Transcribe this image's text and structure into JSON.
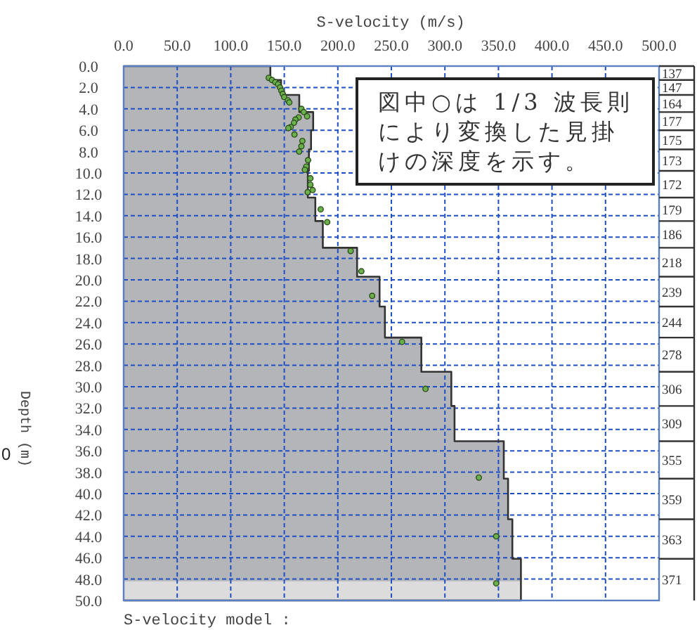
{
  "chart_data": {
    "type": "scatter",
    "xlabel": "S-velocity (m/s)",
    "ylabel": "Depth (m)",
    "xlim": [
      0,
      500
    ],
    "xticks": [
      {
        "value": 0,
        "label": "0.0"
      },
      {
        "value": 50,
        "label": "50.0"
      },
      {
        "value": 100,
        "label": "100.0"
      },
      {
        "value": 150,
        "label": "150.0"
      },
      {
        "value": 200,
        "label": "200.0"
      },
      {
        "value": 250,
        "label": "250.0"
      },
      {
        "value": 300,
        "label": "300.0"
      },
      {
        "value": 350,
        "label": "350.0"
      },
      {
        "value": 400,
        "label": "400.0"
      },
      {
        "value": 450,
        "label": "450.0"
      },
      {
        "value": 500,
        "label": "500.0"
      }
    ],
    "ylim": [
      50,
      0
    ],
    "yticks": [
      {
        "value": 0,
        "label": "0.0"
      },
      {
        "value": 2,
        "label": "2.0"
      },
      {
        "value": 4,
        "label": "4.0"
      },
      {
        "value": 6,
        "label": "6.0"
      },
      {
        "value": 8,
        "label": "8.0"
      },
      {
        "value": 10,
        "label": "10.0"
      },
      {
        "value": 12,
        "label": "12.0"
      },
      {
        "value": 14,
        "label": "14.0"
      },
      {
        "value": 16,
        "label": "16.0"
      },
      {
        "value": 18,
        "label": "18.0"
      },
      {
        "value": 20,
        "label": "20.0"
      },
      {
        "value": 22,
        "label": "22.0"
      },
      {
        "value": 24,
        "label": "24.0"
      },
      {
        "value": 26,
        "label": "26.0"
      },
      {
        "value": 28,
        "label": "28.0"
      },
      {
        "value": 30,
        "label": "30.0"
      },
      {
        "value": 32,
        "label": "32.0"
      },
      {
        "value": 34,
        "label": "34.0"
      },
      {
        "value": 36,
        "label": "36.0"
      },
      {
        "value": 38,
        "label": "38.0"
      },
      {
        "value": 40,
        "label": "40.0"
      },
      {
        "value": 42,
        "label": "42.0"
      },
      {
        "value": 44,
        "label": "44.0"
      },
      {
        "value": 46,
        "label": "46.0"
      },
      {
        "value": 48,
        "label": "48.0"
      },
      {
        "value": 50,
        "label": "50.0"
      }
    ],
    "grid": true,
    "series": [
      {
        "type": "area",
        "color": "#b4b5b8",
        "x": [
          0,
          137,
          137,
          147,
          147,
          164,
          164,
          177,
          177,
          175,
          175,
          173,
          173,
          172,
          172,
          179,
          179,
          186,
          186,
          218,
          218,
          239,
          239,
          244,
          244,
          278,
          278,
          306,
          306,
          309,
          309,
          355,
          355,
          359,
          359,
          363,
          363,
          371,
          371,
          0
        ],
        "values": [
          0,
          0,
          1.3,
          1.3,
          2.7,
          2.7,
          4.3,
          4.3,
          6.0,
          6.0,
          7.8,
          7.8,
          9.8,
          9.8,
          12.3,
          12.3,
          14.5,
          14.5,
          17.0,
          17.0,
          19.7,
          19.7,
          22.5,
          22.5,
          25.4,
          25.4,
          28.6,
          28.6,
          31.8,
          31.8,
          35.1,
          35.1,
          38.6,
          38.6,
          42.4,
          42.4,
          46.1,
          46.1,
          50,
          50
        ]
      },
      {
        "color": "#6ab04c",
        "marker": "circle",
        "x": [
          135.5,
          138.5,
          141.6,
          144.2,
          146.0,
          147.3,
          148.6,
          149.9,
          153.4,
          154.7,
          166.0,
          168.2,
          163.4,
          171.3,
          160.4,
          159.1,
          156.0,
          153.8,
          159.5,
          166.9,
          166.0,
          163.9,
          172.2,
          170.5,
          169.2,
          174.4,
          174.4,
          176.5,
          171.8,
          184.0,
          190.1,
          212.0,
          222.0,
          232.1,
          260.0,
          281.9,
          331.7,
          347.9,
          347.9
        ],
        "values": [
          1.1,
          1.3,
          1.5,
          1.7,
          2.0,
          2.3,
          2.6,
          2.9,
          3.2,
          3.4,
          4.0,
          4.3,
          4.8,
          4.7,
          5.0,
          5.3,
          5.7,
          5.8,
          6.4,
          7.0,
          7.5,
          8.0,
          8.8,
          9.4,
          9.7,
          10.5,
          11.1,
          11.6,
          11.8,
          13.4,
          14.6,
          17.3,
          19.2,
          21.5,
          25.8,
          30.2,
          38.5,
          44.0,
          48.4
        ]
      }
    ],
    "bands": [
      {
        "axis": "y",
        "from": 48.2,
        "to": 50,
        "color": "#dcdcdd"
      }
    ],
    "annotations": [
      "図中○は 1/3 波長則により変換した見掛けの深度を示す。",
      "S-velocity model :",
      "0",
      "137",
      "147",
      "164",
      "177",
      "175",
      "173",
      "172",
      "179",
      "186",
      "218",
      "239",
      "244",
      "278",
      "306",
      "309",
      "355",
      "359",
      "363",
      "371"
    ]
  }
}
